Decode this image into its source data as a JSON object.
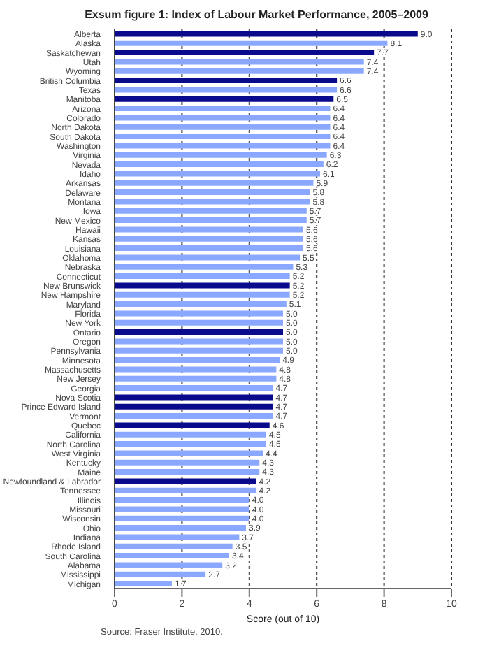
{
  "chart_data": {
    "type": "bar",
    "orientation": "horizontal",
    "title": "Exsum figure 1: Index of Labour Market Performance, 2005–2009",
    "xlabel": "Score (out of 10)",
    "annotations": [
      "Source: Fraser Institute, 2010."
    ],
    "categories": [
      "Alberta",
      "Alaska",
      "Saskatchewan",
      "Utah",
      "Wyoming",
      "British Columbia",
      "Texas",
      "Manitoba",
      "Arizona",
      "Colorado",
      "North Dakota",
      "South Dakota",
      "Washington",
      "Virginia",
      "Nevada",
      "Idaho",
      "Arkansas",
      "Delaware",
      "Montana",
      "Iowa",
      "New Mexico",
      "Hawaii",
      "Kansas",
      "Louisiana",
      "Oklahoma",
      "Nebraska",
      "Connecticut",
      "New Brunswick",
      "New Hampshire",
      "Maryland",
      "Florida",
      "New York",
      "Ontario",
      "Oregon",
      "Pennsylvania",
      "Minnesota",
      "Massachusetts",
      "New Jersey",
      "Georgia",
      "Nova Scotia",
      "Prince Edward Island",
      "Vermont",
      "Quebec",
      "California",
      "North Carolina",
      "West Virginia",
      "Kentucky",
      "Maine",
      "Newfoundland & Labrador",
      "Tennessee",
      "Illinois",
      "Missouri",
      "Wisconsin",
      "Ohio",
      "Indiana",
      "Rhode Island",
      "South Carolina",
      "Alabama",
      "Mississippi",
      "Michigan"
    ],
    "values": [
      9.0,
      8.1,
      7.7,
      7.4,
      7.4,
      6.6,
      6.6,
      6.5,
      6.4,
      6.4,
      6.4,
      6.4,
      6.4,
      6.3,
      6.2,
      6.1,
      5.9,
      5.8,
      5.8,
      5.7,
      5.7,
      5.6,
      5.6,
      5.6,
      5.5,
      5.3,
      5.2,
      5.2,
      5.2,
      5.1,
      5.0,
      5.0,
      5.0,
      5.0,
      5.0,
      4.9,
      4.8,
      4.8,
      4.7,
      4.7,
      4.7,
      4.7,
      4.6,
      4.5,
      4.5,
      4.4,
      4.3,
      4.3,
      4.2,
      4.2,
      4.0,
      4.0,
      4.0,
      3.9,
      3.7,
      3.5,
      3.4,
      3.2,
      2.7,
      1.7
    ],
    "colors": [
      "#0a0a8c",
      "#8aa8ff",
      "#0a0a8c",
      "#8aa8ff",
      "#8aa8ff",
      "#0a0a8c",
      "#8aa8ff",
      "#0a0a8c",
      "#8aa8ff",
      "#8aa8ff",
      "#8aa8ff",
      "#8aa8ff",
      "#8aa8ff",
      "#8aa8ff",
      "#8aa8ff",
      "#8aa8ff",
      "#8aa8ff",
      "#8aa8ff",
      "#8aa8ff",
      "#8aa8ff",
      "#8aa8ff",
      "#8aa8ff",
      "#8aa8ff",
      "#8aa8ff",
      "#8aa8ff",
      "#8aa8ff",
      "#8aa8ff",
      "#0a0a8c",
      "#8aa8ff",
      "#8aa8ff",
      "#8aa8ff",
      "#8aa8ff",
      "#0a0a8c",
      "#8aa8ff",
      "#8aa8ff",
      "#8aa8ff",
      "#8aa8ff",
      "#8aa8ff",
      "#8aa8ff",
      "#0a0a8c",
      "#0a0a8c",
      "#8aa8ff",
      "#0a0a8c",
      "#8aa8ff",
      "#8aa8ff",
      "#8aa8ff",
      "#8aa8ff",
      "#8aa8ff",
      "#0a0a8c",
      "#8aa8ff",
      "#8aa8ff",
      "#8aa8ff",
      "#8aa8ff",
      "#8aa8ff",
      "#8aa8ff",
      "#8aa8ff",
      "#8aa8ff",
      "#8aa8ff",
      "#8aa8ff",
      "#8aa8ff"
    ],
    "value_labels": [
      "9.0",
      "8.1",
      "7.7",
      "7.4",
      "7.4",
      "6.6",
      "6.6",
      "6.5",
      "6.4",
      "6.4",
      "6.4",
      "6.4",
      "6.4",
      "6.3",
      "6.2",
      "6.1",
      "5.9",
      "5.8",
      "5.8",
      "5.7",
      "5.7",
      "5.6",
      "5.6",
      "5.6",
      "5.5",
      "5.3",
      "5.2",
      "5.2",
      "5.2",
      "5.1",
      "5.0",
      "5.0",
      "5.0",
      "5.0",
      "5.0",
      "4.9",
      "4.8",
      "4.8",
      "4.7",
      "4.7",
      "4.7",
      "4.7",
      "4.6",
      "4.5",
      "4.5",
      "4.4",
      "4.3",
      "4.3",
      "4.2",
      "4.2",
      "4.0",
      "4.0",
      "4.0",
      "3.9",
      "3.7",
      "3.5",
      "3.4",
      "3.2",
      "2.7",
      "1.7"
    ],
    "xlim": [
      0,
      10
    ],
    "xticks": [
      0,
      2,
      4,
      6,
      8,
      10
    ],
    "grid": "x"
  }
}
